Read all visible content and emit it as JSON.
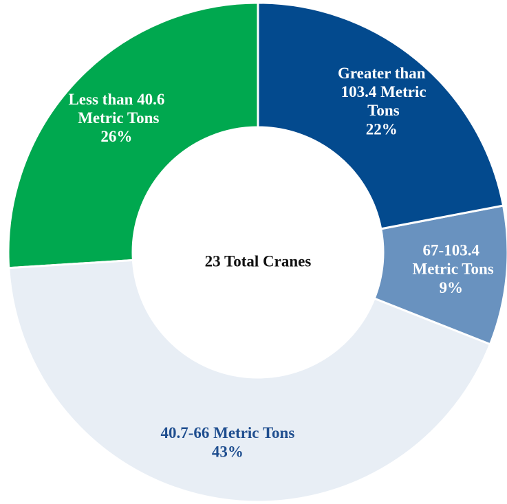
{
  "chart_data": {
    "type": "donut",
    "center_label": "23 Total Cranes",
    "categories": [
      "Greater than 103.4 Metric Tons",
      "67-103.4 Metric Tons",
      "40.7-66 Metric Tons",
      "Less than 40.6 Metric Tons"
    ],
    "values": [
      22,
      9,
      43,
      26
    ],
    "value_labels": [
      "22%",
      "9%",
      "43%",
      "26%"
    ],
    "colors": [
      "#034a8e",
      "#6992bf",
      "#e8eef5",
      "#00a84f"
    ],
    "label_colors": [
      "#ffffff",
      "#ffffff",
      "#1f4e8f",
      "#ffffff"
    ]
  }
}
